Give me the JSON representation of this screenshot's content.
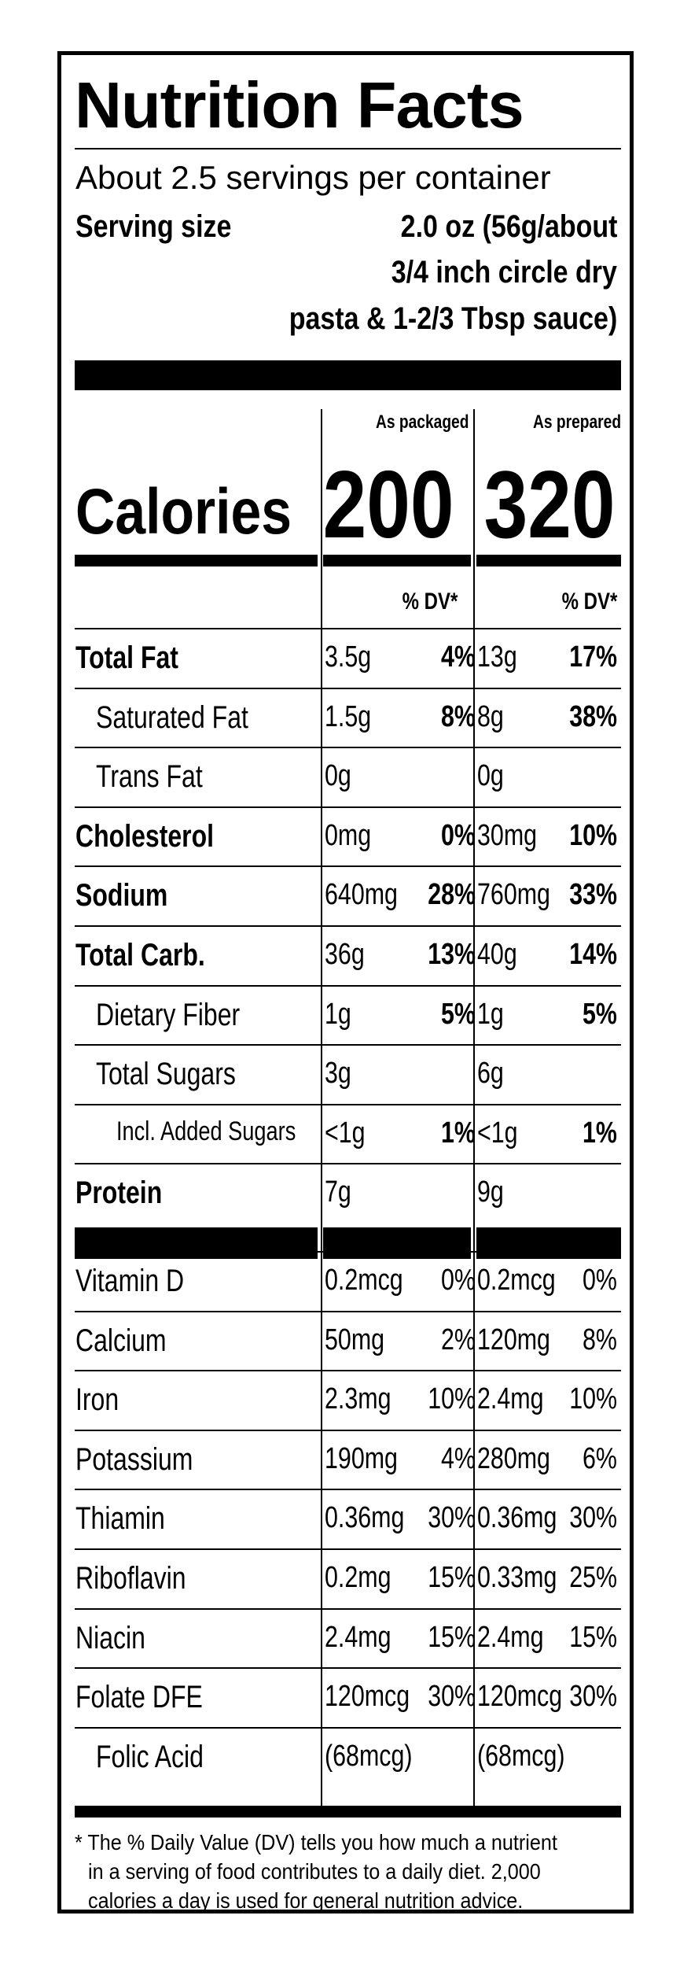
{
  "header": {
    "title": "Nutrition Facts",
    "servings": "About 2.5 servings per container",
    "serving_size_label": "Serving size",
    "serving_size_lines": [
      "2.0 oz (56g/about",
      "3/4 inch circle dry",
      "pasta & 1-2/3  Tbsp sauce)"
    ]
  },
  "columns": {
    "packaged_label": "As packaged",
    "prepared_label": "As prepared",
    "dv_label": "% DV*"
  },
  "calories": {
    "label": "Calories",
    "packaged": "200",
    "prepared": "320"
  },
  "nutrients": [
    {
      "name": "Total Fat",
      "bold": true,
      "indent": 0,
      "pkg_amt": "3.5g",
      "pkg_dv": "4%",
      "prep_amt": "13g",
      "prep_dv": "17%"
    },
    {
      "name": "Saturated Fat",
      "bold": false,
      "indent": 1,
      "pkg_amt": "1.5g",
      "pkg_dv": "8%",
      "prep_amt": "8g",
      "prep_dv": "38%"
    },
    {
      "name": "Trans Fat",
      "bold": false,
      "indent": 1,
      "pkg_amt": "0g",
      "pkg_dv": "",
      "prep_amt": "0g",
      "prep_dv": ""
    },
    {
      "name": "Cholesterol",
      "bold": true,
      "indent": 0,
      "pkg_amt": "0mg",
      "pkg_dv": "0%",
      "prep_amt": "30mg",
      "prep_dv": "10%"
    },
    {
      "name": "Sodium",
      "bold": true,
      "indent": 0,
      "pkg_amt": "640mg",
      "pkg_dv": "28%",
      "prep_amt": "760mg",
      "prep_dv": "33%"
    },
    {
      "name": "Total Carb.",
      "bold": true,
      "indent": 0,
      "pkg_amt": "36g",
      "pkg_dv": "13%",
      "prep_amt": "40g",
      "prep_dv": "14%"
    },
    {
      "name": "Dietary Fiber",
      "bold": false,
      "indent": 1,
      "pkg_amt": "1g",
      "pkg_dv": "5%",
      "prep_amt": "1g",
      "prep_dv": "5%"
    },
    {
      "name": "Total Sugars",
      "bold": false,
      "indent": 1,
      "pkg_amt": "3g",
      "pkg_dv": "",
      "prep_amt": "6g",
      "prep_dv": ""
    },
    {
      "name": "Incl. Added Sugars",
      "bold": false,
      "indent": 2,
      "pkg_amt": "<1g",
      "pkg_dv": "1%",
      "prep_amt": "<1g",
      "prep_dv": "1%"
    },
    {
      "name": "Protein",
      "bold": true,
      "indent": 0,
      "pkg_amt": "7g",
      "pkg_dv": "",
      "prep_amt": "9g",
      "prep_dv": ""
    }
  ],
  "vitamins": [
    {
      "name": "Vitamin D",
      "indent": 0,
      "pkg_amt": "0.2mcg",
      "pkg_dv": "0%",
      "prep_amt": "0.2mcg",
      "prep_dv": "0%"
    },
    {
      "name": "Calcium",
      "indent": 0,
      "pkg_amt": "50mg",
      "pkg_dv": "2%",
      "prep_amt": "120mg",
      "prep_dv": "8%"
    },
    {
      "name": "Iron",
      "indent": 0,
      "pkg_amt": "2.3mg",
      "pkg_dv": "10%",
      "prep_amt": "2.4mg",
      "prep_dv": "10%"
    },
    {
      "name": "Potassium",
      "indent": 0,
      "pkg_amt": "190mg",
      "pkg_dv": "4%",
      "prep_amt": "280mg",
      "prep_dv": "6%"
    },
    {
      "name": "Thiamin",
      "indent": 0,
      "pkg_amt": "0.36mg",
      "pkg_dv": "30%",
      "prep_amt": "0.36mg",
      "prep_dv": "30%"
    },
    {
      "name": "Riboflavin",
      "indent": 0,
      "pkg_amt": "0.2mg",
      "pkg_dv": "15%",
      "prep_amt": "0.33mg",
      "prep_dv": "25%"
    },
    {
      "name": "Niacin",
      "indent": 0,
      "pkg_amt": "2.4mg",
      "pkg_dv": "15%",
      "prep_amt": "2.4mg",
      "prep_dv": "15%"
    },
    {
      "name": "Folate DFE",
      "indent": 0,
      "pkg_amt": "120mcg",
      "pkg_dv": "30%",
      "prep_amt": "120mcg",
      "prep_dv": "30%"
    },
    {
      "name": "Folic Acid",
      "indent": 1,
      "pkg_amt": "(68mcg)",
      "pkg_dv": "",
      "prep_amt": "(68mcg)",
      "prep_dv": ""
    }
  ],
  "footnote_lines": [
    "* The % Daily Value (DV) tells you how much a nutrient",
    "in a serving of food contributes to a daily diet. 2,000",
    "calories a day is used for general nutrition advice."
  ]
}
